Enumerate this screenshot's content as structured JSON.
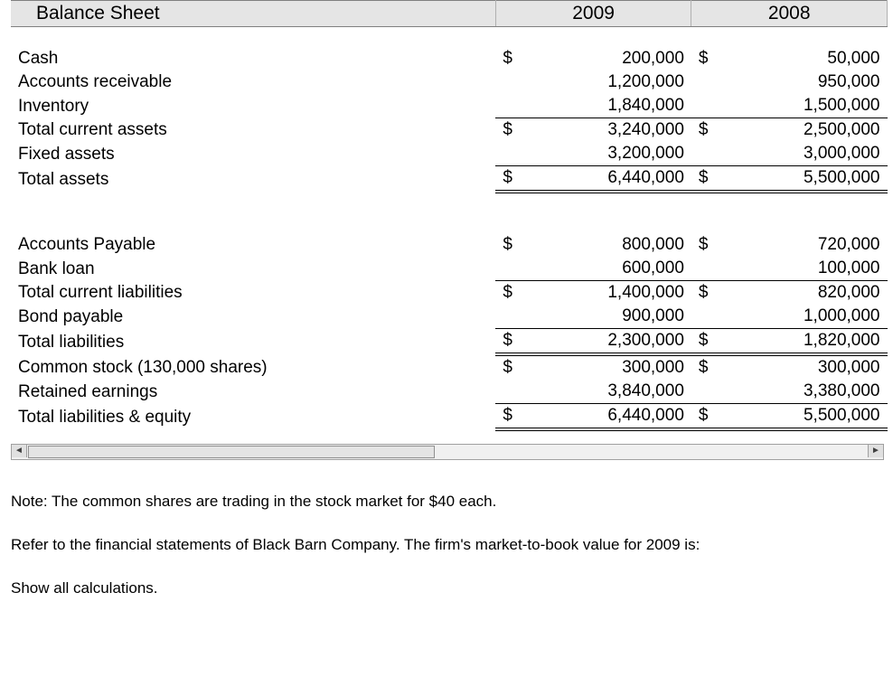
{
  "header": {
    "title": "Balance Sheet",
    "year_a": "2009",
    "year_b": "2008"
  },
  "rows": [
    {
      "label": "Cash",
      "d1": "$",
      "v1": "200,000",
      "d2": "$",
      "v2": "50,000"
    },
    {
      "label": "Accounts receivable",
      "v1": "1,200,000",
      "v2": "950,000"
    },
    {
      "label": "Inventory",
      "v1": "1,840,000",
      "v2": "1,500,000",
      "under1": "single",
      "under2": "single"
    },
    {
      "label": "Total current assets",
      "d1": "$",
      "v1": "3,240,000",
      "d2": "$",
      "v2": "2,500,000"
    },
    {
      "label": "Fixed assets",
      "v1": "3,200,000",
      "v2": "3,000,000",
      "under1": "single",
      "under2": "single"
    },
    {
      "label": "Total assets",
      "d1": "$",
      "v1": "6,440,000",
      "d2": "$",
      "v2": "5,500,000",
      "under1": "double",
      "under2": "double"
    }
  ],
  "rows2": [
    {
      "label": "Accounts Payable",
      "d1": "$",
      "v1": "800,000",
      "d2": "$",
      "v2": "720,000"
    },
    {
      "label": "Bank loan",
      "v1": "600,000",
      "v2": "100,000",
      "under1": "single",
      "under2": "single"
    },
    {
      "label": "Total current liabilities",
      "d1": "$",
      "v1": "1,400,000",
      "d2": "$",
      "v2": "820,000"
    },
    {
      "label": "Bond payable",
      "v1": "900,000",
      "v2": "1,000,000",
      "under1": "single",
      "under2": "single"
    },
    {
      "label": "Total liabilities",
      "d1": "$",
      "v1": "2,300,000",
      "d2": "$",
      "v2": "1,820,000",
      "under1": "double",
      "under2": "double"
    },
    {
      "label": "Common stock (130,000 shares)",
      "d1": "$",
      "v1": "300,000",
      "d2": "$",
      "v2": "300,000"
    },
    {
      "label": "Retained earnings",
      "v1": "3,840,000",
      "v2": "3,380,000",
      "under1": "single",
      "under2": "single"
    },
    {
      "label": "Total liabilities & equity",
      "d1": "$",
      "v1": "6,440,000",
      "d2": "$",
      "v2": "5,500,000",
      "under1": "double",
      "under2": "double"
    }
  ],
  "notes": {
    "line1": "Note: The common shares are trading in the stock market for $40 each.",
    "line2": "Refer to the financial statements of Black Barn Company. The firm's market-to-book value for 2009 is:",
    "line3": "Show all calculations."
  },
  "style": {
    "header_bg": "#e5e5e5",
    "border_color": "#808080",
    "font_size_body": 19,
    "font_size_header": 21,
    "font_size_notes": 17
  }
}
